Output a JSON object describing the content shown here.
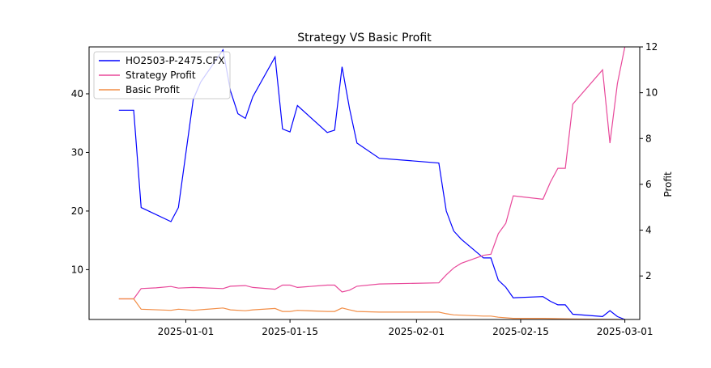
{
  "chart_data": {
    "type": "line",
    "title": "Strategy VS Basic Profit",
    "xlabel": "",
    "ylabel_left": "",
    "ylabel_right": "Profit",
    "x_ticks": [
      {
        "date": "2025-01-01",
        "label": "2025-01-01"
      },
      {
        "date": "2025-01-15",
        "label": "2025-01-15"
      },
      {
        "date": "2025-02-01",
        "label": "2025-02-01"
      },
      {
        "date": "2025-02-15",
        "label": "2025-02-15"
      },
      {
        "date": "2025-03-01",
        "label": "2025-03-01"
      }
    ],
    "xlim": [
      "2024-12-19",
      "2025-03-03"
    ],
    "ylim_left": [
      1.5,
      48
    ],
    "ylim_right": [
      0.1,
      12
    ],
    "yticks_left": [
      10,
      20,
      30,
      40
    ],
    "yticks_right": [
      2,
      4,
      6,
      8,
      10,
      12
    ],
    "grid": false,
    "legend_position": "top-left",
    "series": [
      {
        "name": "HO2503-P-2475.CFX",
        "axis": "left",
        "color": "#0000ff",
        "points": [
          [
            "2024-12-23",
            37.2
          ],
          [
            "2024-12-25",
            37.2
          ],
          [
            "2024-12-26",
            20.6
          ],
          [
            "2024-12-30",
            18.2
          ],
          [
            "2024-12-31",
            20.6
          ],
          [
            "2025-01-02",
            39.0
          ],
          [
            "2025-01-03",
            42.0
          ],
          [
            "2025-01-06",
            47.5
          ],
          [
            "2025-01-07",
            40.5
          ],
          [
            "2025-01-08",
            36.6
          ],
          [
            "2025-01-09",
            35.8
          ],
          [
            "2025-01-10",
            39.5
          ],
          [
            "2025-01-13",
            46.3
          ],
          [
            "2025-01-14",
            34.0
          ],
          [
            "2025-01-15",
            33.5
          ],
          [
            "2025-01-16",
            38.0
          ],
          [
            "2025-01-20",
            33.4
          ],
          [
            "2025-01-21",
            33.8
          ],
          [
            "2025-01-22",
            44.6
          ],
          [
            "2025-01-23",
            37.5
          ],
          [
            "2025-01-24",
            31.6
          ],
          [
            "2025-01-27",
            29.0
          ],
          [
            "2025-02-04",
            28.2
          ],
          [
            "2025-02-05",
            20.0
          ],
          [
            "2025-02-06",
            16.6
          ],
          [
            "2025-02-07",
            15.2
          ],
          [
            "2025-02-10",
            12.0
          ],
          [
            "2025-02-11",
            12.0
          ],
          [
            "2025-02-12",
            8.2
          ],
          [
            "2025-02-13",
            7.0
          ],
          [
            "2025-02-14",
            5.2
          ],
          [
            "2025-02-18",
            5.4
          ],
          [
            "2025-02-19",
            4.6
          ],
          [
            "2025-02-20",
            4.0
          ],
          [
            "2025-02-21",
            4.0
          ],
          [
            "2025-02-22",
            2.4
          ],
          [
            "2025-02-26",
            2.0
          ],
          [
            "2025-02-27",
            3.0
          ],
          [
            "2025-02-28",
            2.0
          ],
          [
            "2025-03-01",
            1.5
          ]
        ]
      },
      {
        "name": "Strategy Profit",
        "axis": "right",
        "color": "#e8489a",
        "points": [
          [
            "2024-12-23",
            1.0
          ],
          [
            "2024-12-25",
            1.0
          ],
          [
            "2024-12-26",
            1.45
          ],
          [
            "2024-12-28",
            1.48
          ],
          [
            "2024-12-30",
            1.54
          ],
          [
            "2024-12-31",
            1.47
          ],
          [
            "2025-01-02",
            1.5
          ],
          [
            "2025-01-06",
            1.45
          ],
          [
            "2025-01-07",
            1.55
          ],
          [
            "2025-01-09",
            1.58
          ],
          [
            "2025-01-10",
            1.5
          ],
          [
            "2025-01-13",
            1.42
          ],
          [
            "2025-01-14",
            1.6
          ],
          [
            "2025-01-15",
            1.6
          ],
          [
            "2025-01-16",
            1.5
          ],
          [
            "2025-01-20",
            1.6
          ],
          [
            "2025-01-21",
            1.6
          ],
          [
            "2025-01-22",
            1.3
          ],
          [
            "2025-01-23",
            1.38
          ],
          [
            "2025-01-24",
            1.55
          ],
          [
            "2025-01-27",
            1.65
          ],
          [
            "2025-02-04",
            1.7
          ],
          [
            "2025-02-05",
            2.05
          ],
          [
            "2025-02-06",
            2.35
          ],
          [
            "2025-02-07",
            2.55
          ],
          [
            "2025-02-10",
            2.9
          ],
          [
            "2025-02-11",
            2.95
          ],
          [
            "2025-02-12",
            3.85
          ],
          [
            "2025-02-13",
            4.3
          ],
          [
            "2025-02-14",
            5.5
          ],
          [
            "2025-02-18",
            5.35
          ],
          [
            "2025-02-19",
            6.1
          ],
          [
            "2025-02-20",
            6.7
          ],
          [
            "2025-02-21",
            6.7
          ],
          [
            "2025-02-22",
            9.5
          ],
          [
            "2025-02-26",
            11.0
          ],
          [
            "2025-02-27",
            7.8
          ],
          [
            "2025-02-28",
            10.4
          ],
          [
            "2025-03-01",
            12.0
          ]
        ]
      },
      {
        "name": "Basic Profit",
        "axis": "right",
        "color": "#f28e47",
        "points": [
          [
            "2024-12-23",
            1.0
          ],
          [
            "2024-12-25",
            1.0
          ],
          [
            "2024-12-26",
            0.55
          ],
          [
            "2024-12-30",
            0.5
          ],
          [
            "2024-12-31",
            0.55
          ],
          [
            "2025-01-02",
            0.5
          ],
          [
            "2025-01-06",
            0.6
          ],
          [
            "2025-01-07",
            0.52
          ],
          [
            "2025-01-09",
            0.48
          ],
          [
            "2025-01-10",
            0.52
          ],
          [
            "2025-01-13",
            0.58
          ],
          [
            "2025-01-14",
            0.45
          ],
          [
            "2025-01-15",
            0.45
          ],
          [
            "2025-01-16",
            0.5
          ],
          [
            "2025-01-20",
            0.45
          ],
          [
            "2025-01-21",
            0.45
          ],
          [
            "2025-01-22",
            0.6
          ],
          [
            "2025-01-23",
            0.52
          ],
          [
            "2025-01-24",
            0.45
          ],
          [
            "2025-01-27",
            0.42
          ],
          [
            "2025-02-04",
            0.42
          ],
          [
            "2025-02-05",
            0.35
          ],
          [
            "2025-02-06",
            0.3
          ],
          [
            "2025-02-10",
            0.25
          ],
          [
            "2025-02-11",
            0.25
          ],
          [
            "2025-02-12",
            0.2
          ],
          [
            "2025-02-14",
            0.15
          ],
          [
            "2025-02-18",
            0.15
          ],
          [
            "2025-02-22",
            0.12
          ],
          [
            "2025-02-26",
            0.11
          ],
          [
            "2025-03-01",
            0.1
          ]
        ]
      }
    ]
  }
}
